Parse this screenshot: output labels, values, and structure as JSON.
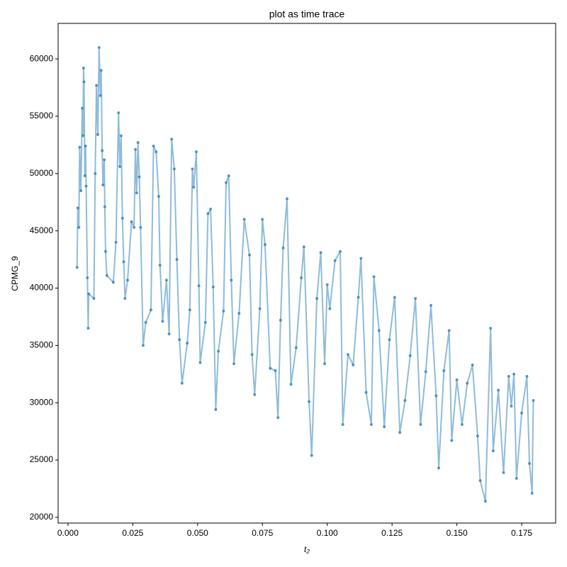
{
  "chart_data": {
    "type": "line",
    "title": "plot as time trace",
    "x_label": "t₂",
    "y_label": "CPMG_9",
    "color": "#1f77b4",
    "xlim": [
      -0.0038,
      0.1881
    ],
    "ylim": [
      19500,
      63100
    ],
    "xticks": [
      {
        "value": 0,
        "label": "0.000"
      },
      {
        "value": 0.025,
        "label": "0.025"
      },
      {
        "value": 0.05,
        "label": "0.050"
      },
      {
        "value": 0.075,
        "label": "0.075"
      },
      {
        "value": 0.1,
        "label": "0.100"
      },
      {
        "value": 0.125,
        "label": "0.125"
      },
      {
        "value": 0.15,
        "label": "0.150"
      },
      {
        "value": 0.175,
        "label": "0.175"
      }
    ],
    "yticks": [
      20000,
      25000,
      30000,
      35000,
      40000,
      45000,
      50000,
      55000,
      60000
    ],
    "x": [
      0.0035,
      0.0038,
      0.0042,
      0.0045,
      0.005,
      0.0055,
      0.0058,
      0.006,
      0.0062,
      0.0065,
      0.0068,
      0.007,
      0.0075,
      0.0078,
      0.008,
      0.01,
      0.0105,
      0.011,
      0.0115,
      0.012,
      0.0125,
      0.0128,
      0.0132,
      0.0135,
      0.014,
      0.0142,
      0.0145,
      0.015,
      0.0175,
      0.0185,
      0.0195,
      0.02,
      0.0205,
      0.021,
      0.0215,
      0.022,
      0.023,
      0.0245,
      0.0255,
      0.026,
      0.0265,
      0.027,
      0.0275,
      0.028,
      0.029,
      0.03,
      0.032,
      0.033,
      0.034,
      0.035,
      0.0355,
      0.0365,
      0.038,
      0.039,
      0.04,
      0.041,
      0.042,
      0.043,
      0.044,
      0.046,
      0.047,
      0.048,
      0.0485,
      0.0495,
      0.0505,
      0.051,
      0.053,
      0.054,
      0.055,
      0.056,
      0.057,
      0.058,
      0.06,
      0.061,
      0.062,
      0.063,
      0.064,
      0.066,
      0.068,
      0.07,
      0.071,
      0.072,
      0.074,
      0.075,
      0.076,
      0.078,
      0.08,
      0.081,
      0.082,
      0.083,
      0.0845,
      0.086,
      0.088,
      0.09,
      0.091,
      0.093,
      0.094,
      0.096,
      0.0975,
      0.099,
      0.1,
      0.101,
      0.103,
      0.105,
      0.106,
      0.108,
      0.11,
      0.112,
      0.113,
      0.115,
      0.117,
      0.118,
      0.12,
      0.122,
      0.124,
      0.126,
      0.128,
      0.13,
      0.132,
      0.134,
      0.136,
      0.138,
      0.14,
      0.142,
      0.143,
      0.145,
      0.147,
      0.148,
      0.15,
      0.152,
      0.154,
      0.156,
      0.158,
      0.159,
      0.161,
      0.163,
      0.164,
      0.166,
      0.168,
      0.17,
      0.171,
      0.172,
      0.173,
      0.175,
      0.177,
      0.178,
      0.179,
      0.1795
    ],
    "values": [
      41800,
      47000,
      45300,
      52300,
      48500,
      55700,
      53300,
      59200,
      58000,
      49800,
      52400,
      48900,
      40900,
      36500,
      39500,
      39100,
      50000,
      57700,
      53400,
      61000,
      56800,
      59000,
      52000,
      49000,
      51200,
      47100,
      43200,
      41100,
      40500,
      44000,
      55300,
      50600,
      53300,
      46100,
      42300,
      39100,
      40700,
      45800,
      45300,
      52100,
      48300,
      52700,
      49700,
      45300,
      35000,
      37000,
      38100,
      52400,
      51900,
      48000,
      42000,
      37100,
      40700,
      36000,
      53000,
      50400,
      42500,
      35500,
      31700,
      35200,
      38100,
      50400,
      48800,
      51900,
      40200,
      33500,
      37000,
      46500,
      46900,
      40100,
      29400,
      34500,
      38000,
      49200,
      49800,
      40700,
      33400,
      37800,
      46000,
      42900,
      34200,
      30700,
      38200,
      46000,
      43800,
      33000,
      32800,
      28700,
      37200,
      43500,
      47800,
      31600,
      34800,
      40900,
      43600,
      30100,
      25400,
      39100,
      43100,
      33400,
      40300,
      38200,
      42400,
      43200,
      28100,
      34200,
      33300,
      39200,
      42600,
      30900,
      28100,
      41000,
      36300,
      27900,
      35500,
      39200,
      27400,
      30200,
      34100,
      39100,
      28100,
      32700,
      38500,
      30600,
      24300,
      32800,
      36300,
      26700,
      32000,
      28100,
      31700,
      33300,
      27100,
      23200,
      21400,
      36500,
      25800,
      31100,
      23900,
      32300,
      29700,
      32500,
      23400,
      29100,
      32300,
      24700,
      22100,
      30200
    ]
  }
}
